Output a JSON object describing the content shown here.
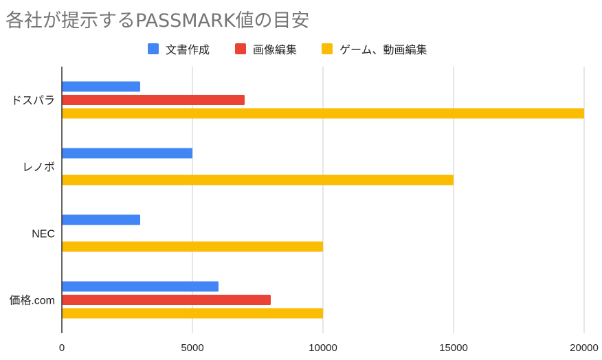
{
  "chart_data": {
    "type": "bar",
    "orientation": "horizontal",
    "title": "各社が提示するPASSMARK値の目安",
    "categories": [
      "ドスパラ",
      "レノボ",
      "NEC",
      "価格.com"
    ],
    "series": [
      {
        "name": "文書作成",
        "color": "#4285f4",
        "values": [
          3000,
          5000,
          3000,
          6000
        ]
      },
      {
        "name": "画像編集",
        "color": "#ea4335",
        "values": [
          7000,
          null,
          null,
          8000
        ]
      },
      {
        "name": "ゲーム、動画編集",
        "color": "#fbbc04",
        "values": [
          20000,
          15000,
          10000,
          10000
        ]
      }
    ],
    "xlim": [
      0,
      20000
    ],
    "xticks": [
      "0",
      "5000",
      "10000",
      "15000",
      "20000"
    ],
    "xtick_values": [
      0,
      5000,
      10000,
      15000,
      20000
    ],
    "grid": true,
    "legend_position": "top"
  }
}
